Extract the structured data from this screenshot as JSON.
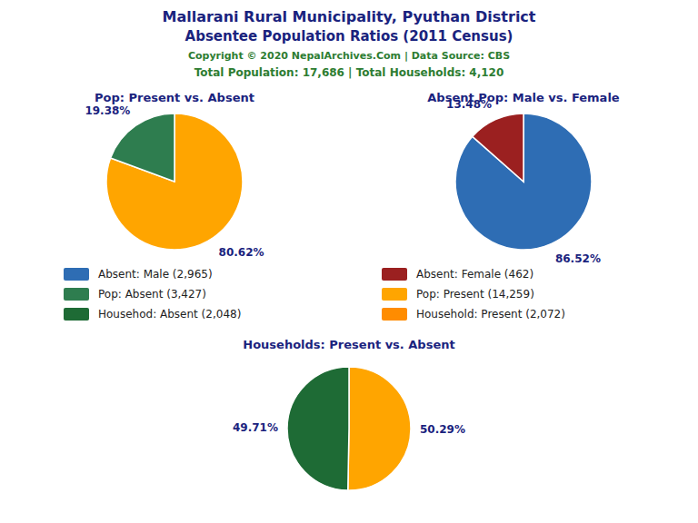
{
  "title": "Mallarani Rural Municipality, Pyuthan District",
  "subtitle": "Absentee Population Ratios (2011 Census)",
  "annotations": [
    "Copyright © 2020 NepalArchives.Com | Data Source: CBS",
    "Total Population: 17,686 | Total Households: 4,120"
  ],
  "legend_entries": [
    {
      "name": "Absent: Male (2,965)",
      "color": "#2E6DB4"
    },
    {
      "name": "Absent: Female (462)",
      "color": "#9B2020"
    },
    {
      "name": "Pop: Absent (3,427)",
      "color": "#2E7D4F"
    },
    {
      "name": "Pop: Present (14,259)",
      "color": "#FFA500"
    },
    {
      "name": "Househod: Absent (2,048)",
      "color": "#1E6B35"
    },
    {
      "name": "Household: Present (2,072)",
      "color": "#FF8C00"
    }
  ],
  "chart_data": [
    {
      "type": "pie",
      "title": "Pop: Present vs. Absent",
      "values": [
        80.62,
        19.38
      ],
      "value_labels": [
        "80.62%",
        "19.38%"
      ],
      "colors": [
        "#FFA500",
        "#2E7D4F"
      ],
      "data_labels": true
    },
    {
      "type": "pie",
      "title": "Absent Pop: Male vs. Female",
      "values": [
        86.52,
        13.48
      ],
      "value_labels": [
        "86.52%",
        "13.48%"
      ],
      "colors": [
        "#2E6DB4",
        "#9B2020"
      ],
      "data_labels": true
    },
    {
      "type": "pie",
      "title": "Households: Present vs. Absent",
      "values": [
        50.29,
        49.71
      ],
      "value_labels": [
        "50.29%",
        "49.71%"
      ],
      "colors": [
        "#FFA500",
        "#1E6B35"
      ],
      "data_labels": true
    }
  ]
}
